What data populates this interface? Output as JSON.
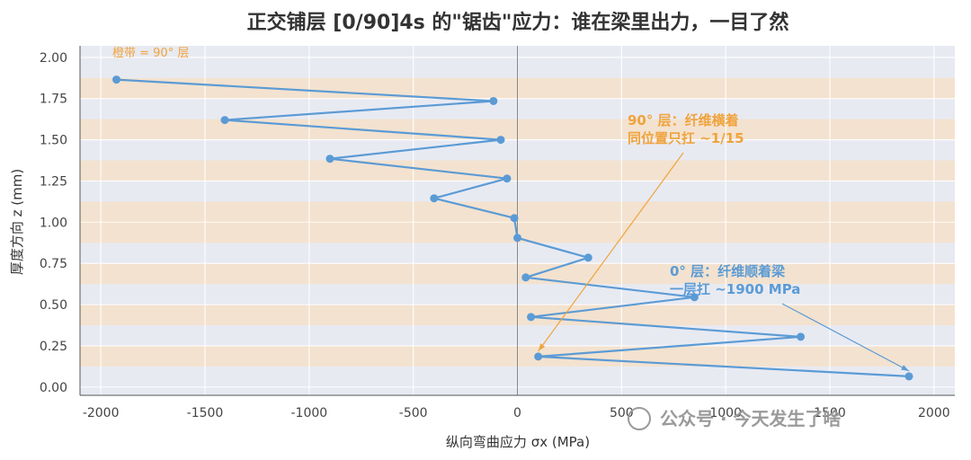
{
  "colors": {
    "background": "#ffffff",
    "plot_bg": "#e8eaf2",
    "grid": "#ffffff",
    "band": "#f3e2cc",
    "series": "#5b9bd5",
    "orange_text": "#f0a33c",
    "blue_text": "#5b9bd5",
    "zero_line": "#888888"
  },
  "chart_data": {
    "type": "line",
    "title": "正交铺层 [0/90]4s 的\"锯齿\"应力：谁在梁里出力，一目了然",
    "xlabel": "纵向弯曲应力 σx (MPa)",
    "ylabel": "厚度方向 z (mm)",
    "xlim": [
      -2100,
      2100
    ],
    "ylim": [
      -0.05,
      2.07
    ],
    "xticks": [
      -2000,
      -1500,
      -1000,
      -500,
      0,
      500,
      1000,
      1500,
      2000
    ],
    "xtick_labels": [
      "-2000",
      "-1500",
      "-1000",
      "-500",
      "0",
      "500",
      "1000",
      "1500",
      "2000"
    ],
    "yticks": [
      0,
      0.25,
      0.5,
      0.75,
      1.0,
      1.25,
      1.5,
      1.75,
      2.0
    ],
    "ytick_labels": [
      "0.00",
      "0.25",
      "0.50",
      "0.75",
      "1.00",
      "1.25",
      "1.50",
      "1.75",
      "2.00"
    ],
    "grid": true,
    "bands_90deg": [
      [
        0.125,
        0.25
      ],
      [
        0.375,
        0.5
      ],
      [
        0.625,
        0.75
      ],
      [
        0.875,
        1.0
      ],
      [
        1.0,
        1.125
      ],
      [
        1.25,
        1.375
      ],
      [
        1.5,
        1.625
      ],
      [
        1.75,
        1.875
      ]
    ],
    "band_legend": "橙带 = 90° 层",
    "series": [
      {
        "points": [
          [
            -1925,
            1.865
          ],
          [
            -115,
            1.735
          ],
          [
            -1405,
            1.62
          ],
          [
            -80,
            1.5
          ],
          [
            -900,
            1.385
          ],
          [
            -50,
            1.265
          ],
          [
            -400,
            1.145
          ],
          [
            -15,
            1.025
          ],
          [
            0,
            0.905
          ],
          [
            340,
            0.785
          ],
          [
            40,
            0.665
          ],
          [
            850,
            0.545
          ],
          [
            65,
            0.425
          ],
          [
            1360,
            0.305
          ],
          [
            100,
            0.185
          ],
          [
            1880,
            0.065
          ]
        ]
      }
    ],
    "annotations": [
      {
        "lines": [
          "90° 层：纤维横着",
          "同位置只扛 ~1/15"
        ],
        "target": [
          100,
          0.185
        ],
        "color_key": "orange_text"
      },
      {
        "lines": [
          "0° 层：纤维顺着梁",
          "一层扛 ~1900 MPa"
        ],
        "target": [
          1880,
          0.065
        ],
        "color_key": "blue_text"
      }
    ]
  },
  "watermark": "公众号 · 今天发生了啥"
}
